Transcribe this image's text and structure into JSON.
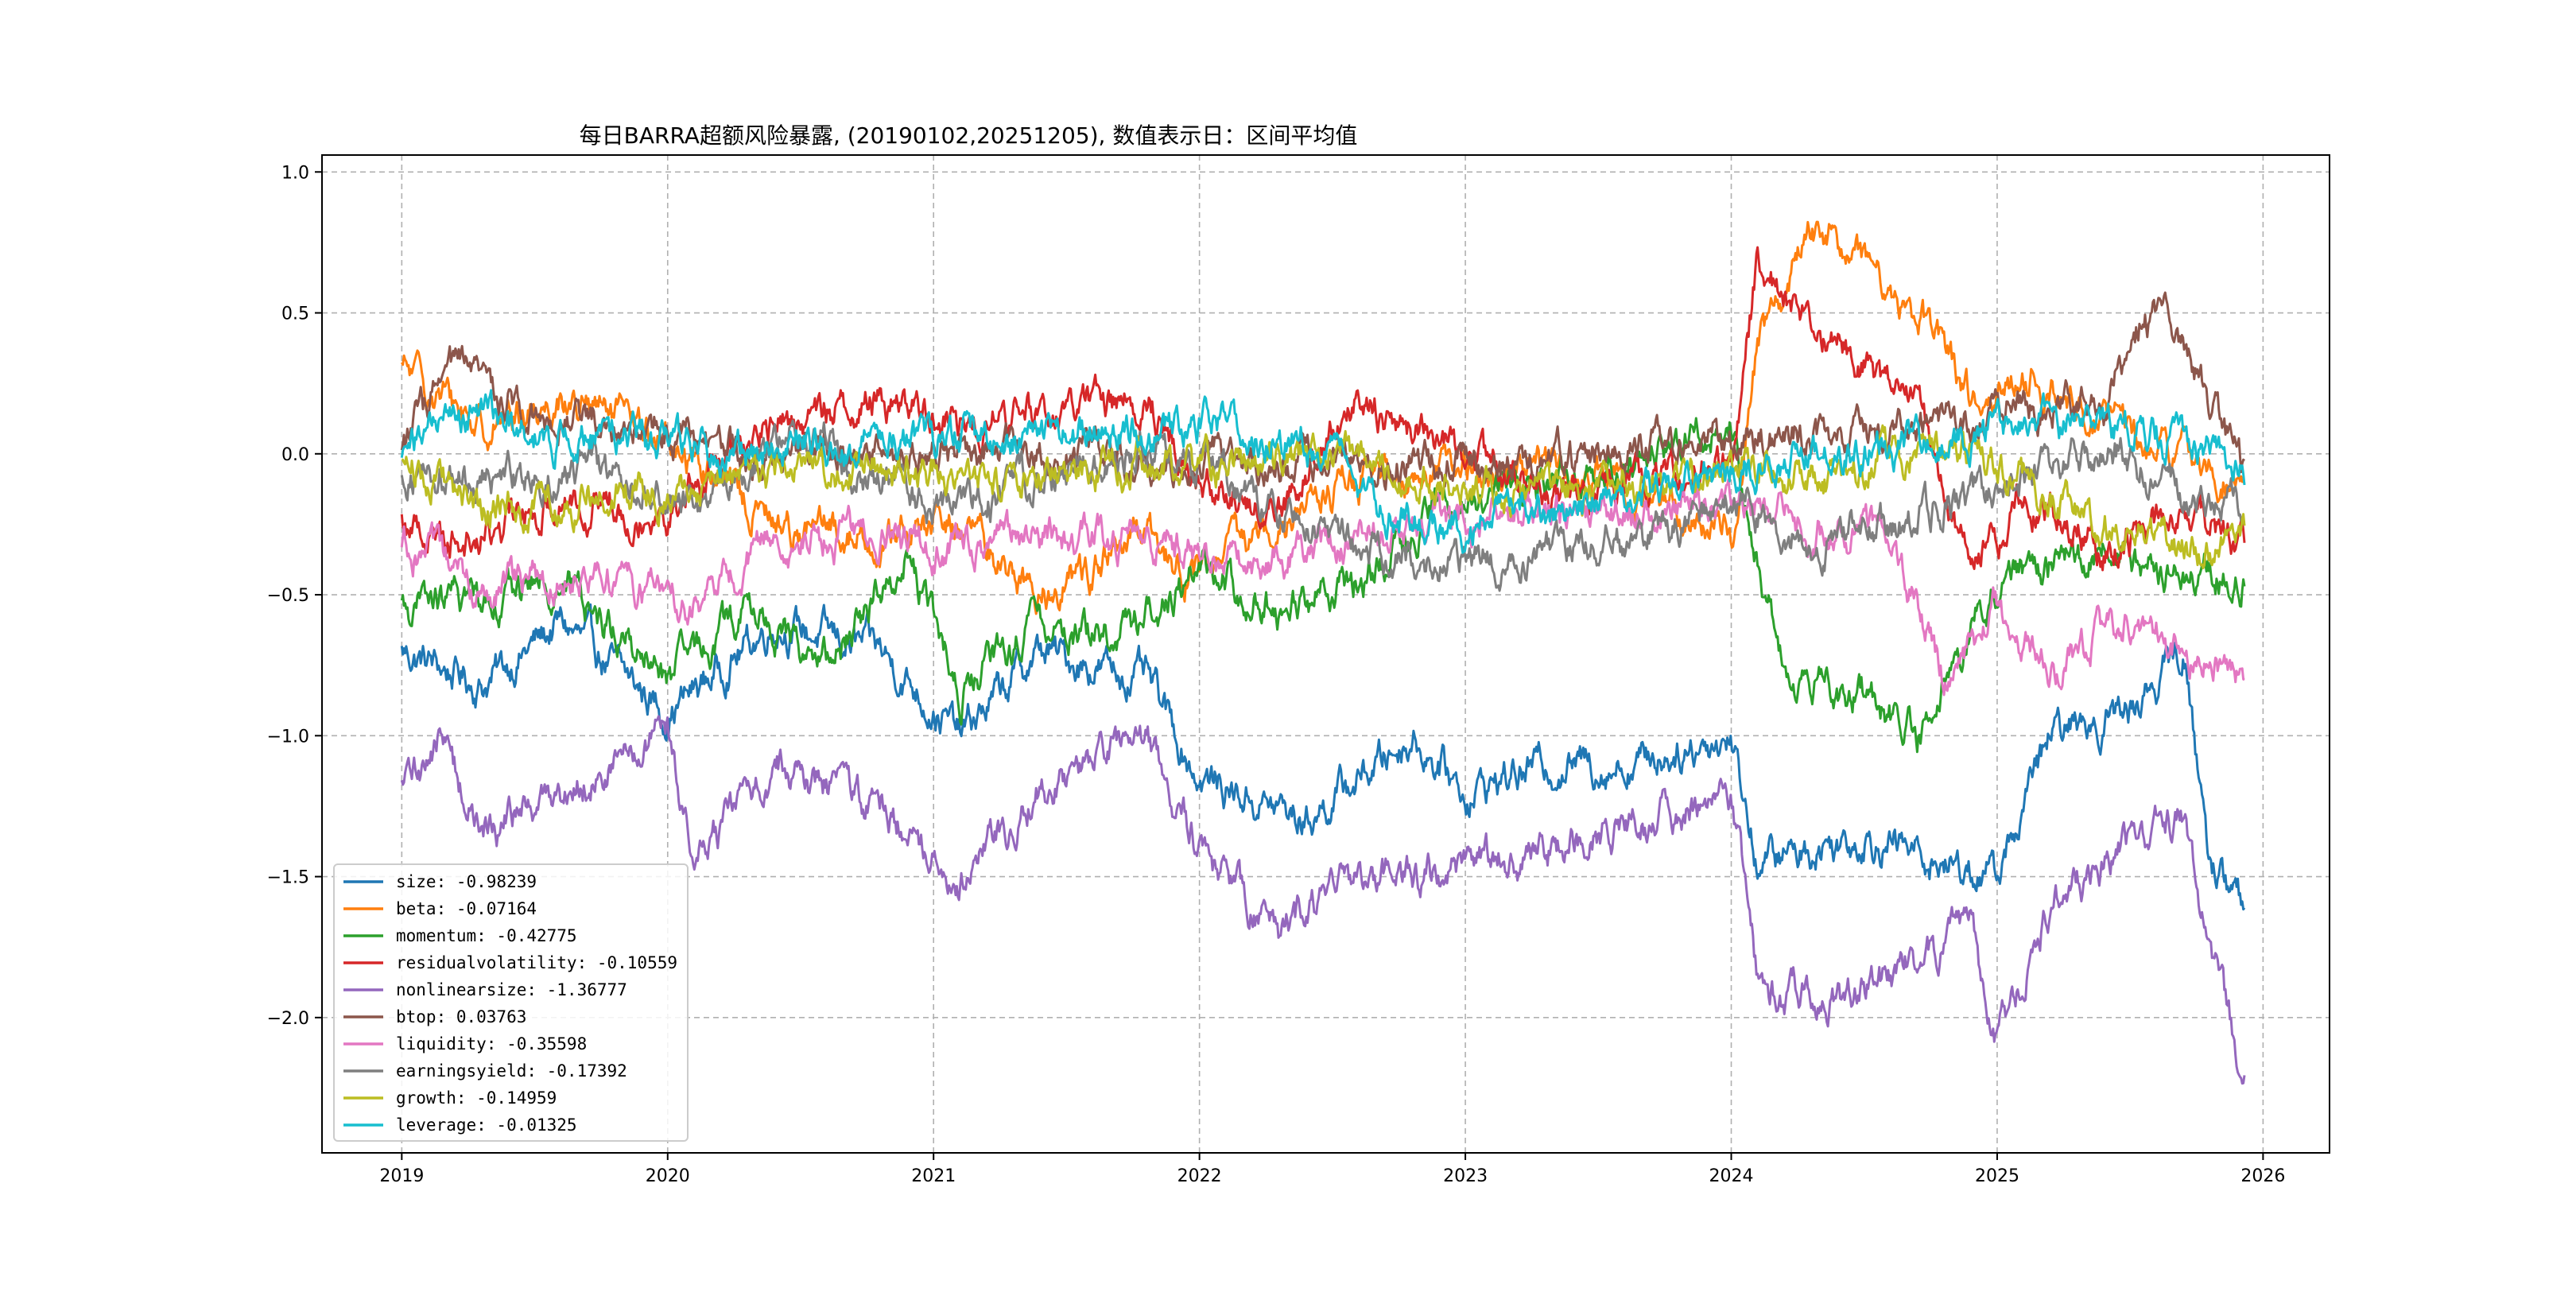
{
  "chart_data": {
    "type": "line",
    "title": "每日BARRA超额风险暴露, (20190102,20251205), 数值表示日：区间平均值",
    "xlabel": "",
    "ylabel": "",
    "x_start": "2019-01-02",
    "x_end": "2025-12-05",
    "xlim": [
      2018.7,
      2026.25
    ],
    "ylim": [
      -2.48,
      1.06
    ],
    "grid": true,
    "legend_position": "lower-left",
    "x_ticks": [
      "2019",
      "2020",
      "2021",
      "2022",
      "2023",
      "2024",
      "2025",
      "2026"
    ],
    "y_ticks": [
      "1.0",
      "0.5",
      "0.0",
      "−0.5",
      "−1.0",
      "−1.5",
      "−2.0"
    ],
    "y_tick_values": [
      1.0,
      0.5,
      0.0,
      -0.5,
      -1.0,
      -1.5,
      -2.0
    ],
    "series": [
      {
        "name": "size",
        "legend": "size: -0.98239",
        "color": "#1f77b4",
        "keypoints": [
          [
            2019.0,
            -0.7
          ],
          [
            2019.3,
            -0.82
          ],
          [
            2019.6,
            -0.6
          ],
          [
            2020.0,
            -0.92
          ],
          [
            2020.4,
            -0.6
          ],
          [
            2020.8,
            -0.7
          ],
          [
            2021.1,
            -1.0
          ],
          [
            2021.4,
            -0.7
          ],
          [
            2021.8,
            -0.8
          ],
          [
            2022.0,
            -1.15
          ],
          [
            2022.4,
            -1.3
          ],
          [
            2022.8,
            -1.0
          ],
          [
            2023.0,
            -1.2
          ],
          [
            2023.3,
            -1.1
          ],
          [
            2023.6,
            -1.1
          ],
          [
            2024.0,
            -1.0
          ],
          [
            2024.1,
            -1.45
          ],
          [
            2024.5,
            -1.35
          ],
          [
            2024.8,
            -1.45
          ],
          [
            2025.0,
            -1.5
          ],
          [
            2025.2,
            -1.0
          ],
          [
            2025.5,
            -0.9
          ],
          [
            2025.7,
            -0.7
          ],
          [
            2025.8,
            -1.45
          ],
          [
            2025.93,
            -1.6
          ]
        ]
      },
      {
        "name": "beta",
        "legend": "beta: -0.07164",
        "color": "#ff7f0e",
        "keypoints": [
          [
            2019.0,
            0.3
          ],
          [
            2019.3,
            0.1
          ],
          [
            2019.6,
            0.2
          ],
          [
            2020.0,
            0.05
          ],
          [
            2020.4,
            -0.25
          ],
          [
            2020.8,
            -0.3
          ],
          [
            2021.1,
            -0.25
          ],
          [
            2021.4,
            -0.5
          ],
          [
            2021.8,
            -0.3
          ],
          [
            2022.0,
            -0.45
          ],
          [
            2022.3,
            -0.2
          ],
          [
            2022.6,
            -0.1
          ],
          [
            2022.9,
            -0.05
          ],
          [
            2023.3,
            -0.05
          ],
          [
            2023.7,
            -0.15
          ],
          [
            2024.0,
            -0.3
          ],
          [
            2024.1,
            0.4
          ],
          [
            2024.3,
            0.8
          ],
          [
            2024.5,
            0.7
          ],
          [
            2024.7,
            0.5
          ],
          [
            2024.9,
            0.2
          ],
          [
            2025.1,
            0.3
          ],
          [
            2025.4,
            0.1
          ],
          [
            2025.7,
            0.0
          ],
          [
            2025.93,
            -0.1
          ]
        ]
      },
      {
        "name": "momentum",
        "legend": "momentum: -0.42775",
        "color": "#2ca02c",
        "keypoints": [
          [
            2019.0,
            -0.55
          ],
          [
            2019.3,
            -0.5
          ],
          [
            2019.6,
            -0.45
          ],
          [
            2020.0,
            -0.8
          ],
          [
            2020.3,
            -0.55
          ],
          [
            2020.6,
            -0.75
          ],
          [
            2020.9,
            -0.35
          ],
          [
            2021.1,
            -0.85
          ],
          [
            2021.4,
            -0.6
          ],
          [
            2021.7,
            -0.65
          ],
          [
            2022.0,
            -0.4
          ],
          [
            2022.3,
            -0.55
          ],
          [
            2022.6,
            -0.45
          ],
          [
            2022.9,
            -0.2
          ],
          [
            2023.2,
            -0.1
          ],
          [
            2023.5,
            -0.05
          ],
          [
            2023.8,
            0.05
          ],
          [
            2024.0,
            0.1
          ],
          [
            2024.2,
            -0.8
          ],
          [
            2024.5,
            -0.85
          ],
          [
            2024.7,
            -1.0
          ],
          [
            2024.9,
            -0.6
          ],
          [
            2025.1,
            -0.4
          ],
          [
            2025.4,
            -0.35
          ],
          [
            2025.7,
            -0.4
          ],
          [
            2025.93,
            -0.45
          ]
        ]
      },
      {
        "name": "residualvolatility",
        "legend": "residualvolatility: -0.10559",
        "color": "#d62728",
        "keypoints": [
          [
            2019.0,
            -0.25
          ],
          [
            2019.3,
            -0.3
          ],
          [
            2019.6,
            -0.15
          ],
          [
            2020.0,
            -0.2
          ],
          [
            2020.4,
            0.1
          ],
          [
            2020.8,
            0.2
          ],
          [
            2021.1,
            0.1
          ],
          [
            2021.4,
            0.15
          ],
          [
            2021.8,
            0.2
          ],
          [
            2022.0,
            -0.1
          ],
          [
            2022.3,
            -0.2
          ],
          [
            2022.6,
            0.2
          ],
          [
            2022.9,
            0.05
          ],
          [
            2023.2,
            -0.1
          ],
          [
            2023.5,
            -0.15
          ],
          [
            2023.8,
            -0.1
          ],
          [
            2024.0,
            0.0
          ],
          [
            2024.1,
            0.7
          ],
          [
            2024.25,
            0.5
          ],
          [
            2024.45,
            0.35
          ],
          [
            2024.7,
            0.15
          ],
          [
            2024.9,
            -0.4
          ],
          [
            2025.1,
            -0.15
          ],
          [
            2025.4,
            -0.35
          ],
          [
            2025.7,
            -0.2
          ],
          [
            2025.93,
            -0.3
          ]
        ]
      },
      {
        "name": "nonlinearsize",
        "legend": "nonlinearsize: -1.36777",
        "color": "#9467bd",
        "keypoints": [
          [
            2019.0,
            -1.2
          ],
          [
            2019.15,
            -1.0
          ],
          [
            2019.3,
            -1.35
          ],
          [
            2019.6,
            -1.2
          ],
          [
            2020.0,
            -1.0
          ],
          [
            2020.1,
            -1.45
          ],
          [
            2020.4,
            -1.1
          ],
          [
            2020.8,
            -1.25
          ],
          [
            2021.1,
            -1.5
          ],
          [
            2021.4,
            -1.2
          ],
          [
            2021.8,
            -1.0
          ],
          [
            2022.0,
            -1.4
          ],
          [
            2022.3,
            -1.7
          ],
          [
            2022.6,
            -1.5
          ],
          [
            2022.9,
            -1.5
          ],
          [
            2023.3,
            -1.4
          ],
          [
            2023.7,
            -1.3
          ],
          [
            2024.0,
            -1.2
          ],
          [
            2024.1,
            -1.9
          ],
          [
            2024.4,
            -1.95
          ],
          [
            2024.7,
            -1.8
          ],
          [
            2024.9,
            -1.7
          ],
          [
            2025.0,
            -2.1
          ],
          [
            2025.2,
            -1.6
          ],
          [
            2025.5,
            -1.4
          ],
          [
            2025.7,
            -1.3
          ],
          [
            2025.8,
            -1.8
          ],
          [
            2025.93,
            -2.2
          ]
        ]
      },
      {
        "name": "btop",
        "legend": "btop: 0.03763",
        "color": "#8c564b",
        "keypoints": [
          [
            2019.0,
            0.05
          ],
          [
            2019.2,
            0.3
          ],
          [
            2019.5,
            0.15
          ],
          [
            2019.9,
            0.1
          ],
          [
            2020.2,
            0.01
          ],
          [
            2020.6,
            0.0
          ],
          [
            2021.0,
            0.0
          ],
          [
            2021.4,
            0.0
          ],
          [
            2021.8,
            -0.02
          ],
          [
            2022.3,
            -0.02
          ],
          [
            2022.8,
            -0.05
          ],
          [
            2023.2,
            -0.05
          ],
          [
            2023.5,
            0.0
          ],
          [
            2023.8,
            0.05
          ],
          [
            2024.0,
            0.05
          ],
          [
            2024.5,
            0.05
          ],
          [
            2024.9,
            0.1
          ],
          [
            2025.1,
            0.2
          ],
          [
            2025.4,
            0.15
          ],
          [
            2025.55,
            0.5
          ],
          [
            2025.7,
            0.4
          ],
          [
            2025.93,
            -0.1
          ]
        ]
      },
      {
        "name": "liquidity",
        "legend": "liquidity: -0.35598",
        "color": "#e377c2",
        "keypoints": [
          [
            2019.0,
            -0.3
          ],
          [
            2019.3,
            -0.5
          ],
          [
            2019.7,
            -0.4
          ],
          [
            2020.1,
            -0.55
          ],
          [
            2020.4,
            -0.3
          ],
          [
            2020.8,
            -0.3
          ],
          [
            2021.1,
            -0.35
          ],
          [
            2021.4,
            -0.3
          ],
          [
            2021.8,
            -0.3
          ],
          [
            2022.1,
            -0.4
          ],
          [
            2022.5,
            -0.3
          ],
          [
            2022.9,
            -0.25
          ],
          [
            2023.3,
            -0.2
          ],
          [
            2023.7,
            -0.2
          ],
          [
            2024.0,
            -0.2
          ],
          [
            2024.3,
            -0.25
          ],
          [
            2024.6,
            -0.3
          ],
          [
            2024.8,
            -0.8
          ],
          [
            2025.0,
            -0.55
          ],
          [
            2025.2,
            -0.75
          ],
          [
            2025.5,
            -0.6
          ],
          [
            2025.7,
            -0.7
          ],
          [
            2025.93,
            -0.82
          ]
        ]
      },
      {
        "name": "earningsyield",
        "legend": "earningsyield: -0.17392",
        "color": "#7f7f7f",
        "keypoints": [
          [
            2019.0,
            -0.05
          ],
          [
            2019.3,
            -0.1
          ],
          [
            2019.7,
            -0.05
          ],
          [
            2020.1,
            -0.2
          ],
          [
            2020.5,
            0.1
          ],
          [
            2020.8,
            -0.1
          ],
          [
            2021.1,
            -0.2
          ],
          [
            2021.4,
            -0.1
          ],
          [
            2021.8,
            0.05
          ],
          [
            2022.1,
            -0.1
          ],
          [
            2022.5,
            -0.3
          ],
          [
            2022.9,
            -0.4
          ],
          [
            2023.3,
            -0.35
          ],
          [
            2023.7,
            -0.3
          ],
          [
            2024.0,
            -0.15
          ],
          [
            2024.3,
            -0.3
          ],
          [
            2024.6,
            -0.25
          ],
          [
            2024.9,
            -0.15
          ],
          [
            2025.1,
            -0.1
          ],
          [
            2025.4,
            0.05
          ],
          [
            2025.7,
            -0.15
          ],
          [
            2025.93,
            -0.2
          ]
        ]
      },
      {
        "name": "growth",
        "legend": "growth: -0.14959",
        "color": "#bcbd22",
        "keypoints": [
          [
            2019.0,
            0.0
          ],
          [
            2019.3,
            -0.2
          ],
          [
            2019.7,
            -0.15
          ],
          [
            2020.1,
            -0.1
          ],
          [
            2020.5,
            -0.05
          ],
          [
            2020.9,
            -0.05
          ],
          [
            2021.3,
            -0.1
          ],
          [
            2021.7,
            -0.05
          ],
          [
            2022.1,
            -0.05
          ],
          [
            2022.5,
            0.0
          ],
          [
            2022.9,
            -0.1
          ],
          [
            2023.3,
            -0.15
          ],
          [
            2023.7,
            -0.1
          ],
          [
            2024.0,
            -0.05
          ],
          [
            2024.4,
            -0.1
          ],
          [
            2024.8,
            0.05
          ],
          [
            2025.1,
            -0.1
          ],
          [
            2025.4,
            -0.25
          ],
          [
            2025.7,
            -0.35
          ],
          [
            2025.93,
            -0.3
          ]
        ]
      },
      {
        "name": "leverage",
        "legend": "leverage: -0.01325",
        "color": "#17becf",
        "keypoints": [
          [
            2019.0,
            0.0
          ],
          [
            2019.2,
            0.15
          ],
          [
            2019.5,
            0.05
          ],
          [
            2019.9,
            0.05
          ],
          [
            2020.2,
            0.0
          ],
          [
            2020.6,
            0.05
          ],
          [
            2021.0,
            0.05
          ],
          [
            2021.4,
            0.05
          ],
          [
            2021.8,
            0.1
          ],
          [
            2022.1,
            0.1
          ],
          [
            2022.4,
            0.05
          ],
          [
            2022.7,
            -0.2
          ],
          [
            2022.9,
            -0.25
          ],
          [
            2023.3,
            -0.2
          ],
          [
            2023.7,
            -0.15
          ],
          [
            2024.0,
            -0.05
          ],
          [
            2024.4,
            0.0
          ],
          [
            2024.8,
            0.05
          ],
          [
            2025.1,
            0.1
          ],
          [
            2025.4,
            0.1
          ],
          [
            2025.7,
            0.05
          ],
          [
            2025.93,
            -0.05
          ]
        ]
      }
    ]
  }
}
